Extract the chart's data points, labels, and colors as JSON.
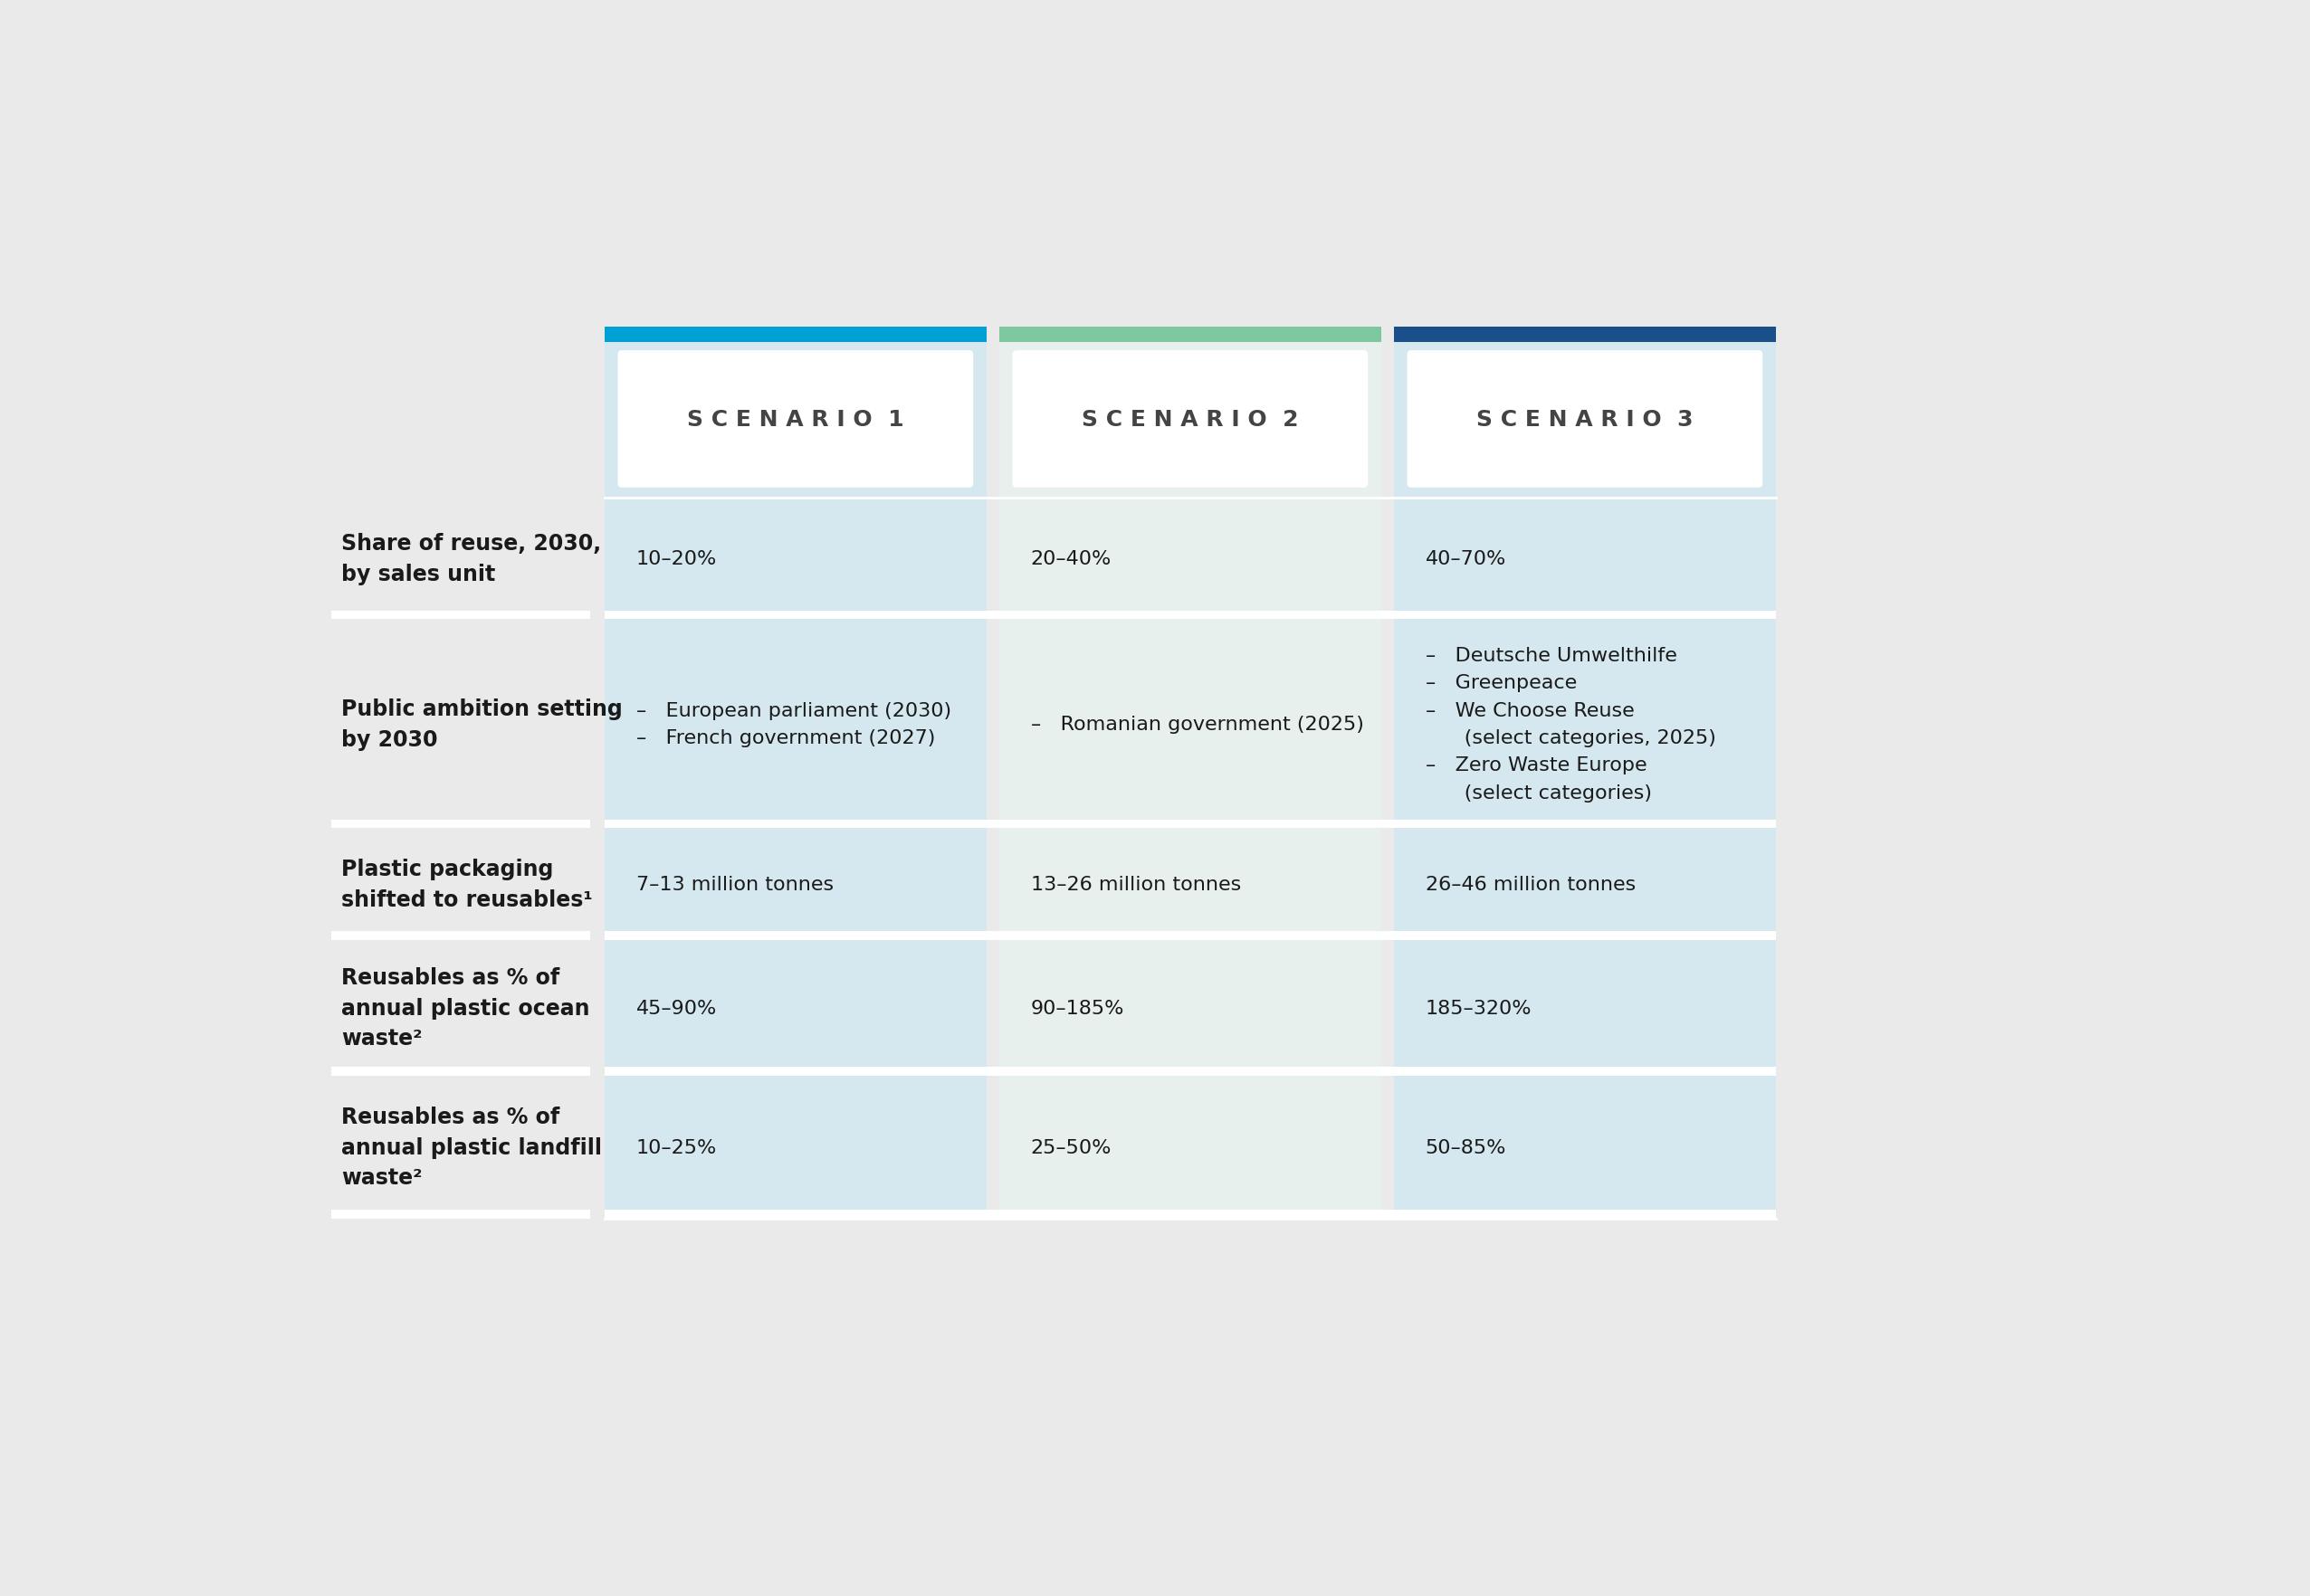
{
  "background_color": "#EAEAEA",
  "col_bg": [
    "#D5E8F0",
    "#E8F0EE",
    "#D5E8F0"
  ],
  "header_bar_colors": [
    "#009FD4",
    "#7EC8A0",
    "#1A4F8A"
  ],
  "scenario_labels": [
    "S C E N A R I O  1",
    "S C E N A R I O  2",
    "S C E N A R I O  3"
  ],
  "row_labels": [
    "Share of reuse, 2030,\nby sales unit",
    "Public ambition setting\nby 2030",
    "Plastic packaging\nshifted to reusables¹",
    "Reusables as % of\nannual plastic ocean\nwaste²",
    "Reusables as % of\nannual plastic landfill\nwaste²"
  ],
  "cell_data": [
    [
      "10–20%",
      "20–40%",
      "40–70%"
    ],
    [
      "–   European parliament (2030)\n–   French government (2027)",
      "–   Romanian government (2025)",
      "–   Deutsche Umwelthilfe\n–   Greenpeace\n–   We Choose Reuse\n      (select categories, 2025)\n–   Zero Waste Europe\n      (select categories)"
    ],
    [
      "7–13 million tonnes",
      "13–26 million tonnes",
      "26–46 million tonnes"
    ],
    [
      "45–90%",
      "90–185%",
      "185–320%"
    ],
    [
      "10–25%",
      "25–50%",
      "50–85%"
    ]
  ],
  "text_color_bold": "#1A1A1A",
  "text_color_cell": "#1A1A1A",
  "white": "#FFFFFF",
  "gap_color": "#EAEAEA",
  "separator_color": "#FFFFFF"
}
